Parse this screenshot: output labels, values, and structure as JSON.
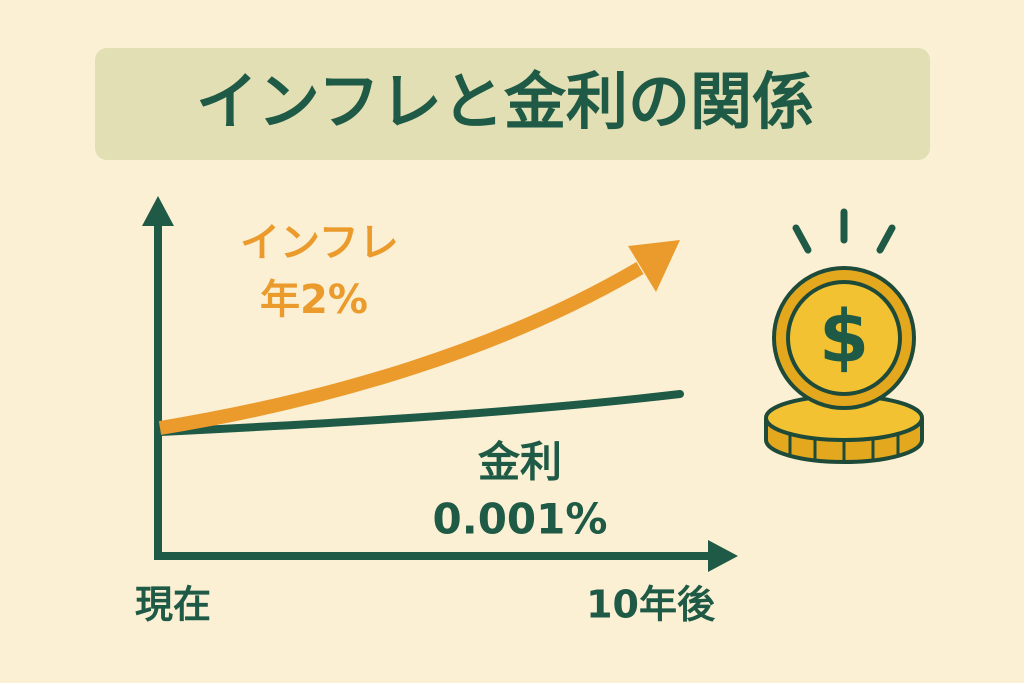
{
  "title": "インフレと金利の関係",
  "inflation": {
    "label": "インフレ",
    "rate": "年2%"
  },
  "interest": {
    "label": "金利",
    "rate": "0.001%"
  },
  "axis": {
    "start": "現在",
    "end": "10年後"
  },
  "coin_symbol": "$"
}
